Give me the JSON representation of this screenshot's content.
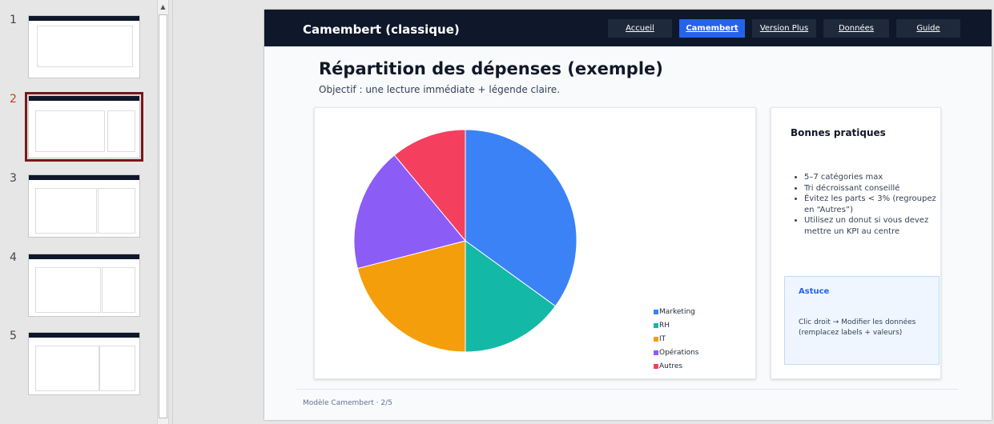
{
  "thumbnails": [
    {
      "number": "1",
      "selected": false
    },
    {
      "number": "2",
      "selected": true
    },
    {
      "number": "3",
      "selected": false
    },
    {
      "number": "4",
      "selected": false
    },
    {
      "number": "5",
      "selected": false
    }
  ],
  "slide": {
    "brand": "Camembert (classique)",
    "nav": [
      "Accueil",
      "Camembert",
      "Version Plus",
      "Données",
      "Guide"
    ],
    "active_nav": "Camembert",
    "title": "Répartition des dépenses (exemple)",
    "subtitle": "Objectif : une lecture immédiate + légende claire.",
    "tips": {
      "title": "Bonnes pratiques",
      "items": [
        "5–7 catégories max",
        "Tri décroissant conseillé",
        "Évitez les parts < 3% (regroupez en “Autres”)",
        "Utilisez un donut si vous devez mettre un KPI au centre"
      ]
    },
    "hint": {
      "title": "Astuce",
      "body": "Clic droit → Modifier les données (remplacez labels + valeurs)"
    },
    "footer": "Modèle Camembert · 2/5"
  },
  "chart_data": {
    "type": "pie",
    "categories": [
      "Marketing",
      "RH",
      "IT",
      "Opérations",
      "Autres"
    ],
    "values": [
      35,
      15,
      21,
      18,
      11
    ],
    "colors": [
      "#3b82f6",
      "#14b8a6",
      "#f59e0b",
      "#8b5cf6",
      "#f43f5e"
    ],
    "legend": "right"
  },
  "colors": {
    "header_bg": "#0f172a",
    "accent": "#2563eb",
    "selected_thumb_outline": "#7a1818"
  }
}
